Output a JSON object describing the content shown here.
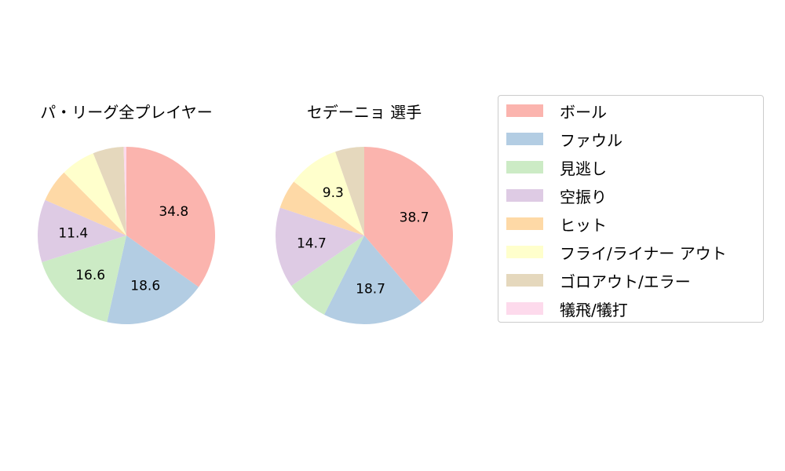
{
  "chart_data": [
    {
      "type": "pie",
      "title": "パ・リーグ全プレイヤー",
      "categories": [
        "ボール",
        "ファウル",
        "見逃し",
        "空振り",
        "ヒット",
        "フライ/ライナー アウト",
        "ゴロアウト/エラー",
        "犠飛/犠打"
      ],
      "values": [
        34.8,
        18.6,
        16.6,
        11.4,
        6.0,
        6.3,
        5.6,
        0.5
      ],
      "labels_shown": [
        "34.8",
        "18.6",
        "16.6",
        "11.4",
        "",
        "",
        "",
        ""
      ],
      "start_angle": 90,
      "direction": "clockwise"
    },
    {
      "type": "pie",
      "title": "セデーニョ  選手",
      "categories": [
        "ボール",
        "ファウル",
        "見逃し",
        "空振り",
        "ヒット",
        "フライ/ライナー アウト",
        "ゴロアウト/エラー",
        "犠飛/犠打"
      ],
      "values": [
        38.7,
        18.7,
        7.9,
        14.7,
        5.3,
        9.3,
        5.3,
        0.0
      ],
      "labels_shown": [
        "38.7",
        "18.7",
        "",
        "14.7",
        "",
        "9.3",
        "",
        ""
      ],
      "start_angle": 90,
      "direction": "clockwise"
    }
  ],
  "legend": {
    "position": "right",
    "items": [
      {
        "label": "ボール",
        "color": "#fbb4ae"
      },
      {
        "label": "ファウル",
        "color": "#b3cde3"
      },
      {
        "label": "見逃し",
        "color": "#ccebc5"
      },
      {
        "label": "空振り",
        "color": "#decbe4"
      },
      {
        "label": "ヒット",
        "color": "#fed9a6"
      },
      {
        "label": "フライ/ライナー アウト",
        "color": "#ffffcc"
      },
      {
        "label": "ゴロアウト/エラー",
        "color": "#e5d8bd"
      },
      {
        "label": "犠飛/犠打",
        "color": "#fddaec"
      }
    ]
  }
}
